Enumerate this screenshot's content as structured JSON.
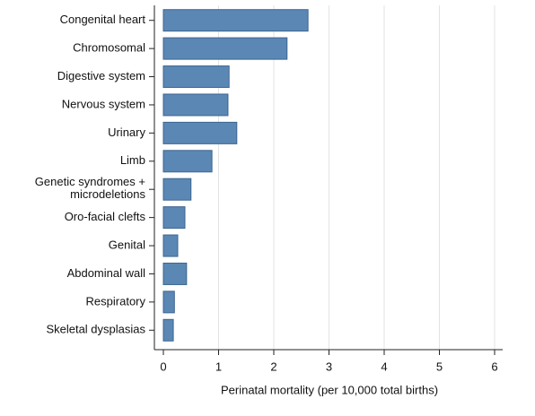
{
  "chart_data": {
    "type": "bar",
    "orientation": "horizontal",
    "categories": [
      "Congenital heart",
      "Chromosomal",
      "Digestive system",
      "Nervous system",
      "Urinary",
      "Limb",
      "Genetic syndromes +\nmicrodeletions",
      "Oro-facial clefts",
      "Genital",
      "Abdominal wall",
      "Respiratory",
      "Skeletal dysplasias"
    ],
    "values": [
      2.62,
      2.24,
      1.19,
      1.17,
      1.33,
      0.88,
      0.5,
      0.39,
      0.26,
      0.42,
      0.2,
      0.18
    ],
    "color": "#5b87b5",
    "xlabel": "Perinatal mortality (per 10,000 total births)",
    "xlim": [
      0,
      6
    ],
    "xticks": [
      0,
      1,
      2,
      3,
      4,
      5,
      6
    ],
    "grid": true
  }
}
